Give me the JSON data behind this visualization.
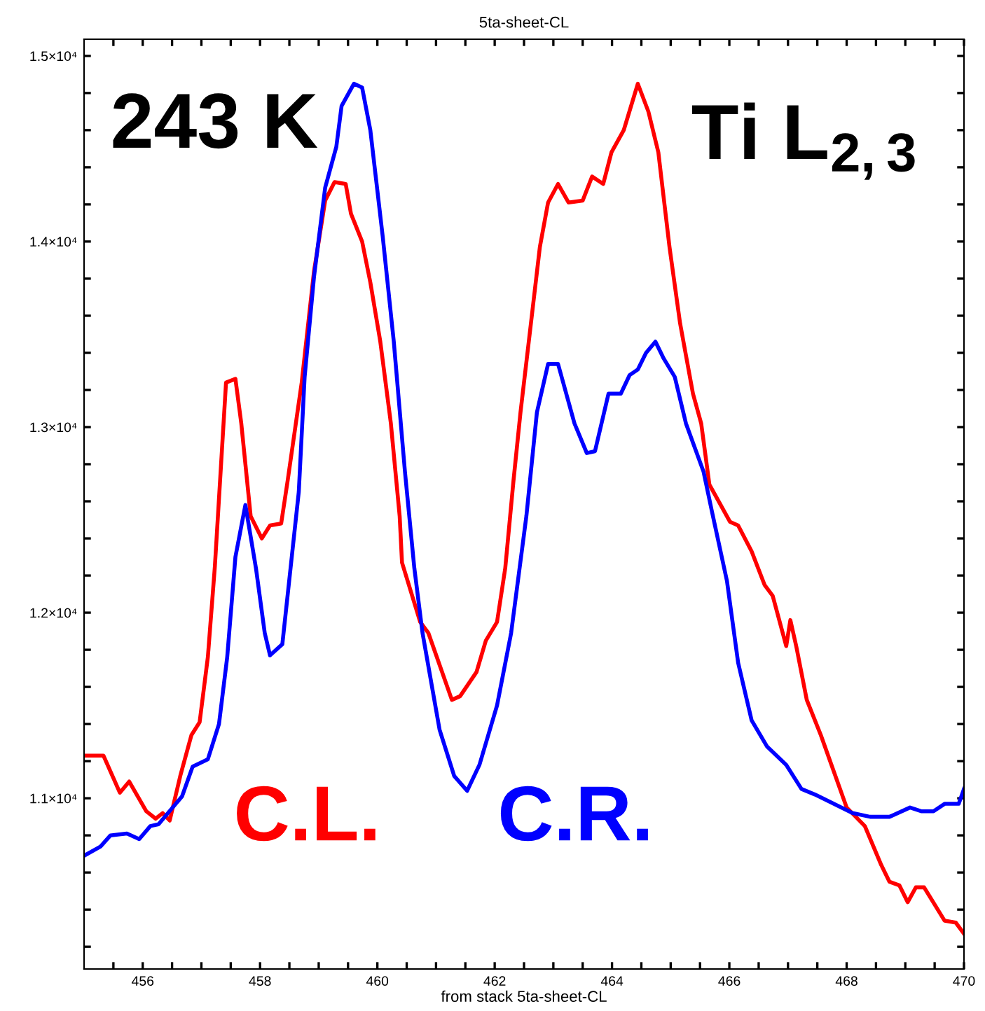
{
  "chart_data": {
    "type": "line",
    "title": "5ta-sheet-CL",
    "xlabel": "from stack 5ta-sheet-CL",
    "annotations": [
      "243 K",
      "Ti L$_{2,3}$"
    ],
    "xlim": [
      455,
      470
    ],
    "xticks": [
      {
        "value": 455.5,
        "label": null
      },
      {
        "value": 456,
        "label": "456"
      },
      {
        "value": 456.5,
        "label": null
      },
      {
        "value": 457,
        "label": null
      },
      {
        "value": 457.5,
        "label": null
      },
      {
        "value": 458,
        "label": "458"
      },
      {
        "value": 458.5,
        "label": null
      },
      {
        "value": 459,
        "label": null
      },
      {
        "value": 459.5,
        "label": null
      },
      {
        "value": 460,
        "label": "460"
      },
      {
        "value": 460.5,
        "label": null
      },
      {
        "value": 461,
        "label": null
      },
      {
        "value": 461.5,
        "label": null
      },
      {
        "value": 462,
        "label": "462"
      },
      {
        "value": 462.5,
        "label": null
      },
      {
        "value": 463,
        "label": null
      },
      {
        "value": 463.5,
        "label": null
      },
      {
        "value": 464,
        "label": "464"
      },
      {
        "value": 464.5,
        "label": null
      },
      {
        "value": 465,
        "label": null
      },
      {
        "value": 465.5,
        "label": null
      },
      {
        "value": 466,
        "label": "466"
      },
      {
        "value": 466.5,
        "label": null
      },
      {
        "value": 467,
        "label": null
      },
      {
        "value": 467.5,
        "label": null
      },
      {
        "value": 468,
        "label": "468"
      },
      {
        "value": 468.5,
        "label": null
      },
      {
        "value": 469,
        "label": null
      },
      {
        "value": 469.5,
        "label": null
      },
      {
        "value": 470,
        "label": "470"
      }
    ],
    "ylim": [
      10080,
      15090
    ],
    "yticks": [
      {
        "value": 10200,
        "label": null
      },
      {
        "value": 10400,
        "label": null
      },
      {
        "value": 10600,
        "label": null
      },
      {
        "value": 10800,
        "label": null
      },
      {
        "value": 11000,
        "label": "1.1×10⁴"
      },
      {
        "value": 11200,
        "label": null
      },
      {
        "value": 11400,
        "label": null
      },
      {
        "value": 11600,
        "label": null
      },
      {
        "value": 11800,
        "label": null
      },
      {
        "value": 12000,
        "label": "1.2×10⁴"
      },
      {
        "value": 12200,
        "label": null
      },
      {
        "value": 12400,
        "label": null
      },
      {
        "value": 12600,
        "label": null
      },
      {
        "value": 12800,
        "label": null
      },
      {
        "value": 13000,
        "label": "1.3×10⁴"
      },
      {
        "value": 13200,
        "label": null
      },
      {
        "value": 13400,
        "label": null
      },
      {
        "value": 13600,
        "label": null
      },
      {
        "value": 13800,
        "label": null
      },
      {
        "value": 14000,
        "label": "1.4×10⁴"
      },
      {
        "value": 14200,
        "label": null
      },
      {
        "value": 14400,
        "label": null
      },
      {
        "value": 14600,
        "label": null
      },
      {
        "value": 14800,
        "label": null
      },
      {
        "value": 15000,
        "label": "1.5×10⁴"
      }
    ],
    "grid": false,
    "legend": false,
    "marker": "none",
    "line_style": "solid",
    "series": [
      {
        "name": "C.L.",
        "color": "#ff0000",
        "x": [
          455.0,
          455.33,
          455.61,
          455.77,
          456.06,
          456.22,
          456.34,
          456.46,
          456.64,
          456.83,
          456.97,
          457.11,
          457.23,
          457.42,
          457.58,
          457.68,
          457.84,
          458.03,
          458.17,
          458.36,
          458.47,
          458.71,
          458.92,
          459.11,
          459.27,
          459.46,
          459.55,
          459.74,
          459.88,
          460.05,
          460.23,
          460.38,
          460.42,
          460.73,
          460.87,
          461.27,
          461.41,
          461.69,
          461.85,
          462.04,
          462.18,
          462.32,
          462.44,
          462.77,
          462.91,
          463.08,
          463.26,
          463.5,
          463.66,
          463.85,
          463.99,
          464.2,
          464.44,
          464.62,
          464.79,
          464.98,
          465.16,
          465.38,
          465.52,
          465.66,
          466.01,
          466.15,
          466.38,
          466.6,
          466.74,
          466.97,
          467.04,
          467.14,
          467.32,
          467.56,
          468.0,
          468.31,
          468.59,
          468.73,
          468.9,
          469.04,
          469.18,
          469.32,
          469.67,
          469.86,
          470.0
        ],
        "values": [
          11230,
          11230,
          11030,
          11090,
          10930,
          10890,
          10920,
          10880,
          11120,
          11340,
          11410,
          11760,
          12250,
          13240,
          13260,
          13020,
          12520,
          12400,
          12470,
          12480,
          12710,
          13240,
          13840,
          14220,
          14320,
          14310,
          14150,
          14000,
          13780,
          13460,
          13020,
          12520,
          12270,
          11950,
          11890,
          11530,
          11550,
          11680,
          11850,
          11950,
          12240,
          12710,
          13080,
          13970,
          14210,
          14310,
          14210,
          14220,
          14350,
          14310,
          14480,
          14600,
          14850,
          14700,
          14480,
          13970,
          13560,
          13180,
          13020,
          12690,
          12490,
          12470,
          12330,
          12150,
          12090,
          11820,
          11960,
          11820,
          11530,
          11340,
          10950,
          10850,
          10640,
          10550,
          10530,
          10440,
          10520,
          10520,
          10340,
          10330,
          10270
        ]
      },
      {
        "name": "C.R.",
        "color": "#0000ff",
        "x": [
          455.0,
          455.28,
          455.45,
          455.73,
          455.94,
          456.13,
          456.27,
          456.67,
          456.85,
          457.11,
          457.3,
          457.44,
          457.58,
          457.75,
          457.93,
          458.08,
          458.17,
          458.38,
          458.52,
          458.66,
          458.76,
          458.92,
          459.11,
          459.3,
          459.39,
          459.6,
          459.74,
          459.88,
          460.09,
          460.28,
          460.47,
          460.63,
          460.77,
          461.06,
          461.31,
          461.53,
          461.74,
          462.04,
          462.28,
          462.54,
          462.72,
          462.91,
          463.08,
          463.36,
          463.57,
          463.71,
          463.94,
          464.15,
          464.3,
          464.44,
          464.58,
          464.74,
          464.88,
          465.07,
          465.26,
          465.56,
          465.7,
          465.96,
          466.15,
          466.38,
          466.64,
          466.97,
          467.23,
          467.46,
          467.72,
          468.1,
          468.4,
          468.73,
          469.08,
          469.27,
          469.48,
          469.67,
          469.91,
          470.0
        ],
        "values": [
          10690,
          10740,
          10800,
          10810,
          10780,
          10850,
          10860,
          11010,
          11170,
          11210,
          11400,
          11760,
          12300,
          12580,
          12240,
          11890,
          11770,
          11830,
          12240,
          12650,
          13270,
          13810,
          14290,
          14510,
          14730,
          14850,
          14830,
          14600,
          14030,
          13460,
          12760,
          12240,
          11890,
          11370,
          11120,
          11040,
          11180,
          11500,
          11890,
          12520,
          13080,
          13340,
          13340,
          13020,
          12860,
          12870,
          13180,
          13180,
          13280,
          13310,
          13400,
          13460,
          13370,
          13270,
          13020,
          12760,
          12550,
          12170,
          11730,
          11420,
          11280,
          11180,
          11050,
          11020,
          10980,
          10920,
          10900,
          10900,
          10950,
          10930,
          10930,
          10970,
          10970,
          11050
        ]
      }
    ]
  }
}
